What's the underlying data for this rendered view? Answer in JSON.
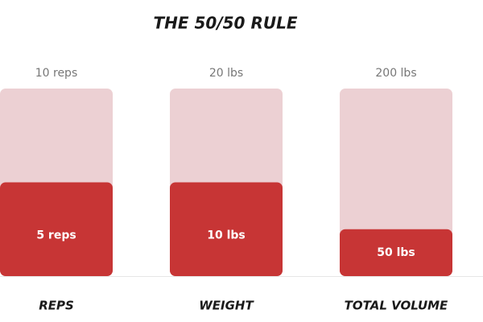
{
  "chart_data": {
    "type": "bar",
    "title": "THE 50/50 RULE",
    "categories": [
      "REPS",
      "WEIGHT",
      "TOTAL VOLUME"
    ],
    "totals": [
      10,
      20,
      200
    ],
    "total_labels": [
      "10 reps",
      "20 lbs",
      "200 lbs"
    ],
    "values": [
      5,
      10,
      50
    ],
    "value_labels": [
      "5 reps",
      "10 lbs",
      "50 lbs"
    ],
    "total_color": "#ecd0d3",
    "color": "#c73535"
  }
}
